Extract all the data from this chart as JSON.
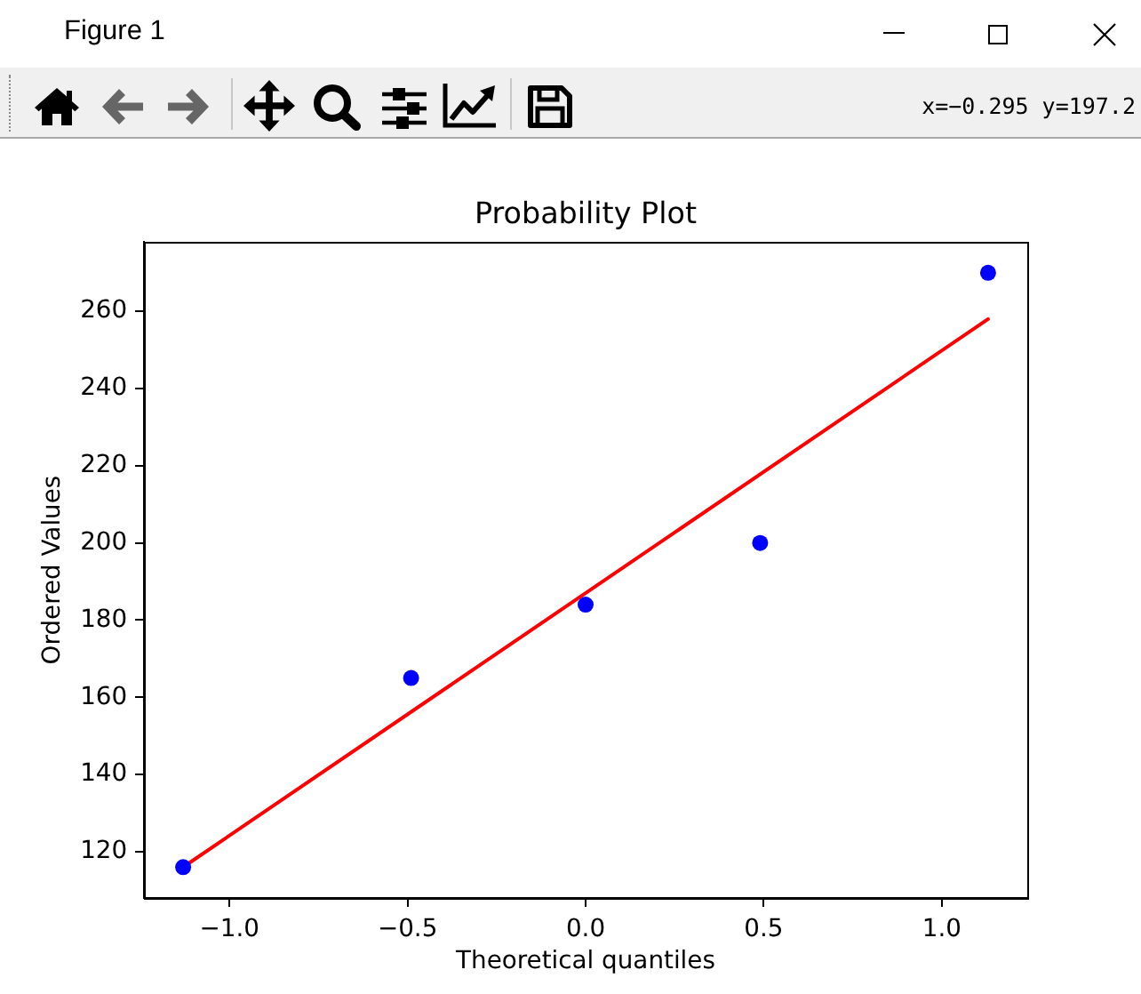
{
  "chart_data": {
    "type": "scatter",
    "title": "Probability Plot",
    "xlabel": "Theoretical quantiles",
    "ylabel": "Ordered Values",
    "annotations": [
      "Figure 1",
      "x=−0.295 y=197.2"
    ],
    "series": [
      {
        "type": "scatter",
        "color": "#0000ff",
        "marker": "circle",
        "x": [
          -1.13,
          -0.49,
          0,
          0.49,
          1.13
        ],
        "values": [
          116,
          165,
          184,
          200,
          270
        ]
      },
      {
        "type": "line",
        "color": "#ff0000",
        "marker": "none",
        "line_style": "solid",
        "x": [
          -1.13,
          1.13
        ],
        "values": [
          116,
          258
        ]
      }
    ],
    "xlim": [
      -1.24,
      1.24
    ],
    "ylim": [
      108,
      278
    ],
    "xticks": [
      {
        "value": -1,
        "label": "−1.0"
      },
      {
        "value": -0.5,
        "label": "−0.5"
      },
      {
        "value": 0,
        "label": "0.0"
      },
      {
        "value": 0.5,
        "label": "0.5"
      },
      {
        "value": 1,
        "label": "1.0"
      }
    ],
    "yticks": [
      120,
      140,
      160,
      180,
      200,
      220,
      240,
      260
    ],
    "grid": false,
    "legend": false
  }
}
